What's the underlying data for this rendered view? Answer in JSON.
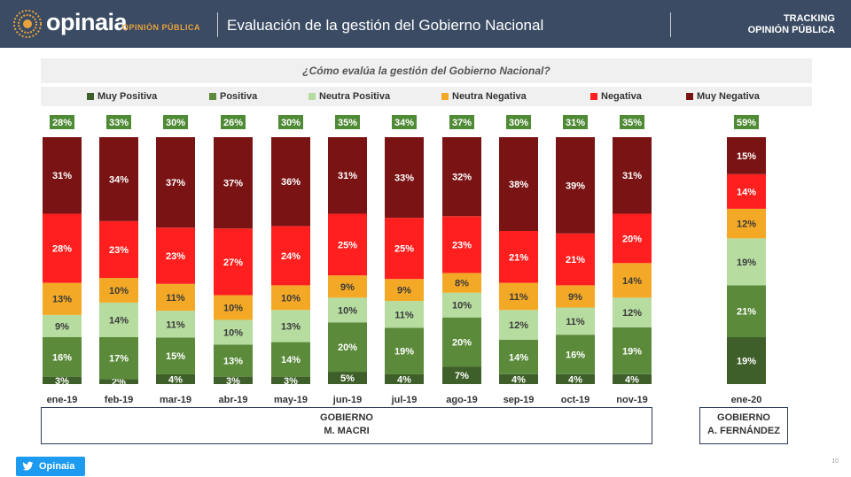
{
  "header": {
    "brand": "opinaia",
    "brand_sub": "OPINIÓN PÚBLICA",
    "title": "Evaluación de la gestión del Gobierno Nacional",
    "tracking_line1": "TRACKING",
    "tracking_line2": "OPINIÓN PÚBLICA"
  },
  "footer": {
    "twitter_label": "Opinaia",
    "page_number": "10"
  },
  "groups": [
    {
      "line1": "GOBIERNO",
      "line2": "M. MACRI"
    },
    {
      "line1": "GOBIERNO",
      "line2": "A. FERNÁNDEZ"
    }
  ],
  "chart_data": {
    "type": "bar",
    "stacked": true,
    "title": "¿Cómo evalúa la gestión del Gobierno Nacional?",
    "categories": [
      "ene-19",
      "feb-19",
      "mar-19",
      "abr-19",
      "may-19",
      "jun-19",
      "jul-19",
      "ago-19",
      "sep-19",
      "oct-19",
      "nov-19",
      "ene-20"
    ],
    "positive_totals": [
      "28%",
      "33%",
      "30%",
      "26%",
      "30%",
      "35%",
      "34%",
      "37%",
      "30%",
      "31%",
      "35%",
      "59%"
    ],
    "series": [
      {
        "name": "Muy Positiva",
        "color": "#3f5f2a",
        "values": [
          3,
          2,
          4,
          3,
          3,
          5,
          4,
          7,
          4,
          4,
          4,
          19
        ]
      },
      {
        "name": "Positiva",
        "color": "#5a8a3a",
        "values": [
          16,
          17,
          15,
          13,
          14,
          20,
          19,
          20,
          14,
          16,
          19,
          21
        ]
      },
      {
        "name": "Neutra Positiva",
        "color": "#b6dca0",
        "values": [
          9,
          14,
          11,
          10,
          13,
          10,
          11,
          10,
          12,
          11,
          12,
          19
        ]
      },
      {
        "name": "Neutra Negativa",
        "color": "#f3a926",
        "values": [
          13,
          10,
          11,
          10,
          10,
          9,
          9,
          8,
          11,
          9,
          14,
          12
        ]
      },
      {
        "name": "Negativa",
        "color": "#ff1f1f",
        "values": [
          28,
          23,
          23,
          27,
          24,
          25,
          25,
          23,
          21,
          21,
          20,
          14
        ]
      },
      {
        "name": "Muy Negativa",
        "color": "#7a1414",
        "values": [
          31,
          34,
          37,
          37,
          36,
          31,
          33,
          32,
          38,
          39,
          31,
          15
        ]
      }
    ],
    "ylim": [
      0,
      100
    ]
  }
}
